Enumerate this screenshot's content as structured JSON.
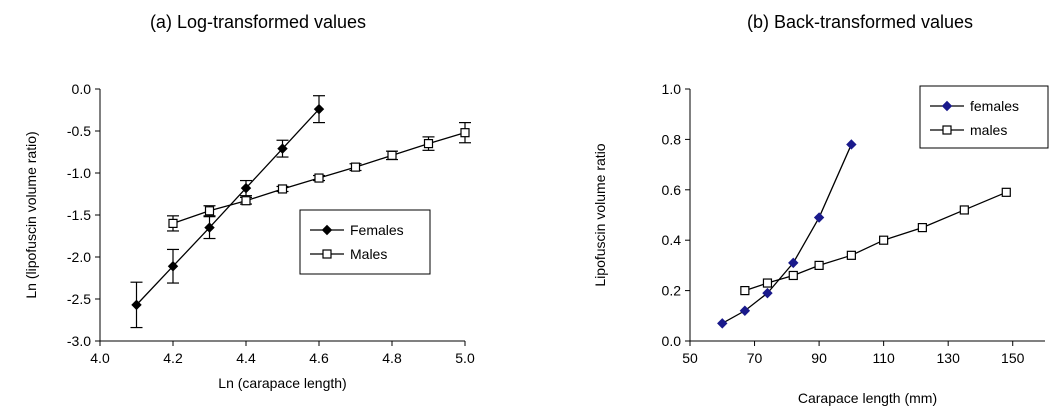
{
  "chart_data": [
    {
      "type": "line",
      "title": "(a) Log-transformed values",
      "xlabel": "Ln (carapace length)",
      "ylabel": "Ln (lipofuscin volume ratio)",
      "xlim": [
        4.0,
        5.0
      ],
      "ylim": [
        -3.0,
        0.0
      ],
      "xticks": [
        "4.0",
        "4.2",
        "4.4",
        "4.6",
        "4.8",
        "5.0"
      ],
      "yticks": [
        "0.0",
        "-0.5",
        "-1.0",
        "-1.5",
        "-2.0",
        "-2.5",
        "-3.0"
      ],
      "grid": false,
      "legend_position": "center-right",
      "series": [
        {
          "name": "Females",
          "marker": "filled-diamond",
          "color": "#000000",
          "x": [
            4.1,
            4.2,
            4.3,
            4.4,
            4.5,
            4.6
          ],
          "y": [
            -2.57,
            -2.11,
            -1.65,
            -1.18,
            -0.71,
            -0.24
          ],
          "err": [
            0.27,
            0.2,
            0.13,
            0.09,
            0.1,
            0.16
          ]
        },
        {
          "name": "Males",
          "marker": "open-square",
          "color": "#000000",
          "x": [
            4.2,
            4.3,
            4.4,
            4.5,
            4.6,
            4.7,
            4.8,
            4.9,
            5.0
          ],
          "y": [
            -1.6,
            -1.45,
            -1.33,
            -1.19,
            -1.06,
            -0.93,
            -0.79,
            -0.65,
            -0.52
          ],
          "err": [
            0.09,
            0.06,
            0.04,
            0.03,
            0.03,
            0.04,
            0.05,
            0.08,
            0.12
          ]
        }
      ]
    },
    {
      "type": "line",
      "title": "(b) Back-transformed values",
      "xlabel": "Carapace length (mm)",
      "ylabel": "Lipofuscin volume ratio",
      "xlim": [
        50,
        160
      ],
      "ylim": [
        0.0,
        1.0
      ],
      "xticks": [
        "50",
        "70",
        "90",
        "110",
        "130",
        "150"
      ],
      "yticks": [
        "1.0",
        "0.8",
        "0.6",
        "0.4",
        "0.2",
        "0.0"
      ],
      "grid": false,
      "legend_position": "top-right",
      "series": [
        {
          "name": "females",
          "marker": "filled-diamond",
          "color": "#1a1a8c",
          "x": [
            60,
            67,
            74,
            82,
            90,
            100
          ],
          "y": [
            0.07,
            0.12,
            0.19,
            0.31,
            0.49,
            0.78
          ]
        },
        {
          "name": "males",
          "marker": "open-square",
          "color": "#000000",
          "x": [
            67,
            74,
            82,
            90,
            100,
            110,
            122,
            135,
            148
          ],
          "y": [
            0.2,
            0.23,
            0.26,
            0.3,
            0.34,
            0.4,
            0.45,
            0.52,
            0.59
          ]
        }
      ]
    }
  ]
}
